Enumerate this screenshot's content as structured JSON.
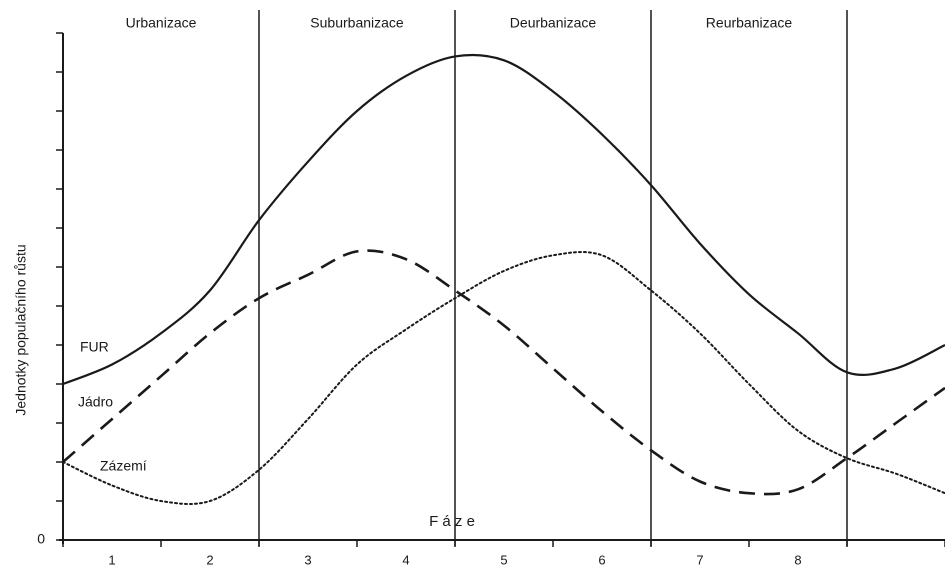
{
  "chart_data": {
    "type": "line",
    "y_label": "Jednotky populačního růstu",
    "x_label": "F á z e",
    "categories": [
      "1",
      "2",
      "3",
      "4",
      "5",
      "6",
      "7",
      "8"
    ],
    "phases": [
      {
        "name": "Urbanizace",
        "range": [
          0,
          2
        ]
      },
      {
        "name": "Suburbanizace",
        "range": [
          2,
          4
        ]
      },
      {
        "name": "Deurbanizace",
        "range": [
          4,
          6
        ]
      },
      {
        "name": "Reurbanizace",
        "range": [
          6,
          8
        ]
      }
    ],
    "x": [
      0,
      0.5,
      1,
      1.5,
      2,
      2.5,
      3,
      3.5,
      4,
      4.5,
      5,
      5.5,
      6,
      6.5,
      7,
      7.5,
      8,
      8.5,
      9
    ],
    "series": [
      {
        "name": "FUR",
        "color": "#1a1a1a",
        "style": "solid",
        "values": [
          4.0,
          4.5,
          5.3,
          6.4,
          8.2,
          9.7,
          11.0,
          11.9,
          12.4,
          12.3,
          11.5,
          10.4,
          9.1,
          7.6,
          6.3,
          5.3,
          4.3,
          4.4,
          5.0
        ]
      },
      {
        "name": "Jádro",
        "color": "#1a1a1a",
        "style": "dashed",
        "values": [
          2.0,
          3.1,
          4.2,
          5.3,
          6.2,
          6.8,
          7.4,
          7.2,
          6.4,
          5.5,
          4.4,
          3.3,
          2.3,
          1.5,
          1.2,
          1.3,
          2.1,
          3.0,
          3.9
        ]
      },
      {
        "name": "Zázemí",
        "color": "#1a1a1a",
        "style": "dotted",
        "values": [
          2.0,
          1.4,
          1.0,
          1.0,
          1.8,
          3.1,
          4.5,
          5.4,
          6.2,
          6.9,
          7.3,
          7.3,
          6.4,
          5.3,
          4.0,
          2.8,
          2.1,
          1.7,
          1.2
        ]
      }
    ],
    "xlim": [
      0,
      9
    ],
    "ylim": [
      0,
      13
    ],
    "yticks": [
      0
    ],
    "yminor": [
      1,
      2,
      3,
      4,
      5,
      6,
      7,
      8,
      9,
      10,
      11,
      12,
      13
    ]
  }
}
